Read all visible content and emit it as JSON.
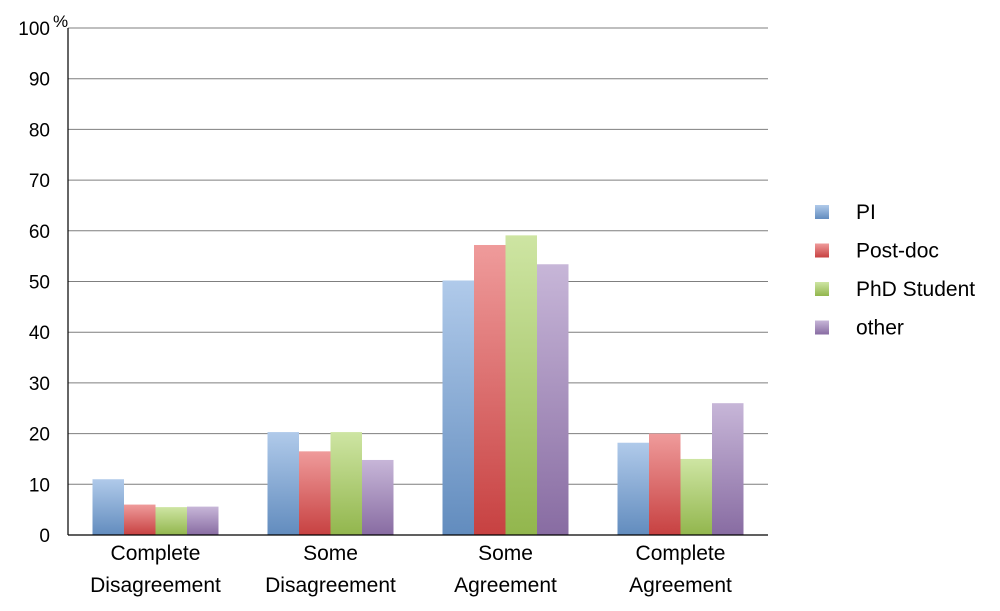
{
  "chart_data": {
    "type": "bar",
    "ylabel": "%",
    "ylim": [
      0,
      100
    ],
    "yticks": [
      0,
      10,
      20,
      30,
      40,
      50,
      60,
      70,
      80,
      90,
      100
    ],
    "grid": true,
    "legend_position": "right",
    "categories": [
      [
        "Complete",
        "Disagreement"
      ],
      [
        "Some",
        "Disagreement"
      ],
      [
        "Some",
        "Agreement"
      ],
      [
        "Complete",
        "Agreement"
      ]
    ],
    "series": [
      {
        "name": "PI",
        "color": "#6f9fd8",
        "values": [
          11,
          20.3,
          50.2,
          18.2
        ]
      },
      {
        "name": "Post-doc",
        "color": "#e24a4a",
        "values": [
          6,
          16.5,
          57.2,
          20
        ]
      },
      {
        "name": "PhD Student",
        "color": "#a6cf57",
        "values": [
          5.5,
          20.3,
          59.1,
          15
        ]
      },
      {
        "name": "other",
        "color": "#9a7bb8",
        "values": [
          5.6,
          14.8,
          53.4,
          26
        ]
      }
    ]
  }
}
